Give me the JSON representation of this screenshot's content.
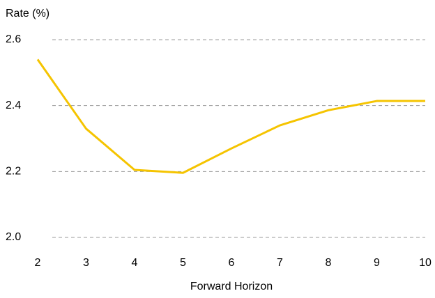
{
  "chart_data": {
    "type": "line",
    "y_label": "Rate (%)",
    "x_label": "Forward Horizon",
    "x": [
      2,
      3,
      4,
      5,
      6,
      7,
      8,
      9,
      10
    ],
    "series": [
      {
        "name": "Rate",
        "color": "#f5c400",
        "values": [
          2.54,
          2.33,
          2.205,
          2.196,
          2.27,
          2.34,
          2.386,
          2.414,
          2.414
        ]
      }
    ],
    "xlim": [
      2,
      10
    ],
    "xticks": [
      2,
      3,
      4,
      5,
      6,
      7,
      8,
      9,
      10
    ],
    "ylim": [
      2.0,
      2.6
    ],
    "yticks": [
      {
        "value": 2,
        "label": "2.0"
      },
      2.2,
      2.4,
      2.6
    ],
    "grid": true
  }
}
